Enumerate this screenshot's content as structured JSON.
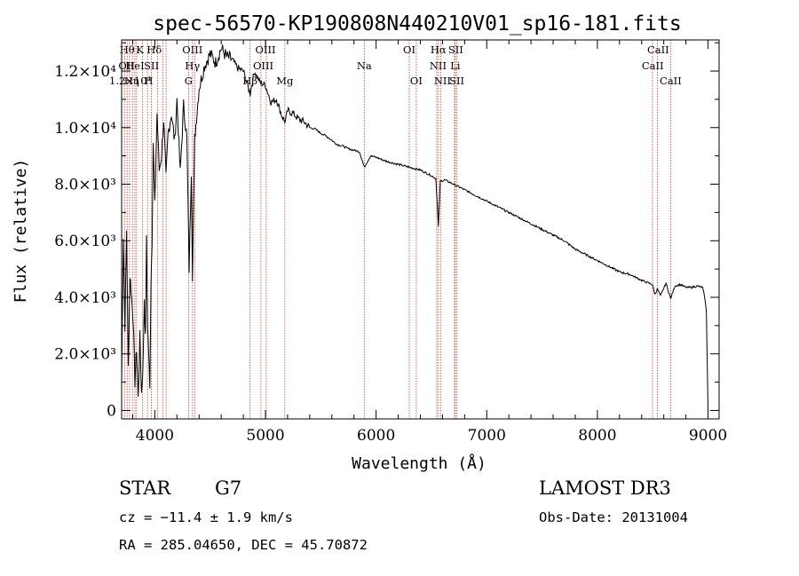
{
  "chart_data": {
    "type": "line",
    "title": "spec-56570-KP190808N440210V01_sp16-181.fits",
    "xlabel": "Wavelength (Å)",
    "ylabel": "Flux (relative)",
    "xlim": [
      3700,
      9100
    ],
    "ylim": [
      -300,
      13100
    ],
    "x_ticks": [
      {
        "value": 4000,
        "label": "4000"
      },
      {
        "value": 5000,
        "label": "5000"
      },
      {
        "value": 6000,
        "label": "6000"
      },
      {
        "value": 7000,
        "label": "7000"
      },
      {
        "value": 8000,
        "label": "8000"
      },
      {
        "value": 9000,
        "label": "9000"
      }
    ],
    "y_ticks": [
      {
        "value": 0,
        "label": "0"
      },
      {
        "value": 2000,
        "label": "2.0×10³"
      },
      {
        "value": 4000,
        "label": "4.0×10³"
      },
      {
        "value": 6000,
        "label": "6.0×10³"
      },
      {
        "value": 8000,
        "label": "8.0×10³"
      },
      {
        "value": 10000,
        "label": "1.0×10⁴"
      },
      {
        "value": 12000,
        "label": "1.2×10⁴"
      }
    ],
    "spectrum": {
      "name": "flux",
      "x": [
        3700,
        3715,
        3730,
        3745,
        3760,
        3775,
        3790,
        3805,
        3820,
        3835,
        3850,
        3865,
        3880,
        3895,
        3905,
        3915,
        3925,
        3935,
        3945,
        3955,
        3965,
        3975,
        3985,
        4000,
        4020,
        4040,
        4060,
        4080,
        4101,
        4120,
        4150,
        4180,
        4200,
        4230,
        4260,
        4290,
        4310,
        4330,
        4340,
        4360,
        4400,
        4450,
        4500,
        4550,
        4600,
        4650,
        4700,
        4750,
        4800,
        4861,
        4900,
        4950,
        5000,
        5050,
        5100,
        5150,
        5180,
        5200,
        5250,
        5300,
        5350,
        5400,
        5450,
        5500,
        5550,
        5600,
        5650,
        5700,
        5750,
        5800,
        5850,
        5893,
        5950,
        6000,
        6100,
        6200,
        6300,
        6400,
        6500,
        6540,
        6563,
        6580,
        6620,
        6700,
        6800,
        6900,
        7000,
        7100,
        7200,
        7300,
        7400,
        7500,
        7600,
        7700,
        7800,
        7900,
        8000,
        8100,
        8200,
        8300,
        8400,
        8498,
        8520,
        8542,
        8570,
        8620,
        8662,
        8700,
        8750,
        8800,
        8850,
        8900,
        8950,
        8970,
        8985,
        9000
      ],
      "y": [
        1000,
        6200,
        3000,
        6400,
        1500,
        4800,
        4000,
        3200,
        1000,
        2200,
        400,
        2600,
        600,
        1800,
        4000,
        2500,
        6000,
        3000,
        2000,
        700,
        4500,
        6000,
        9500,
        7200,
        10500,
        8500,
        9000,
        10300,
        8200,
        9800,
        10500,
        9500,
        11000,
        8400,
        10800,
        9600,
        5000,
        8500,
        4800,
        9600,
        11400,
        12200,
        12600,
        12300,
        12800,
        12500,
        12400,
        12100,
        12000,
        11200,
        12000,
        11600,
        11500,
        10900,
        11000,
        10400,
        10200,
        10600,
        10500,
        10300,
        10200,
        10000,
        9950,
        9800,
        9700,
        9550,
        9400,
        9350,
        9250,
        9200,
        9150,
        8600,
        9000,
        8950,
        8800,
        8700,
        8600,
        8500,
        8300,
        8200,
        6500,
        8100,
        8150,
        8000,
        7800,
        7600,
        7400,
        7200,
        7000,
        6800,
        6600,
        6400,
        6200,
        6000,
        5700,
        5500,
        5300,
        5100,
        4900,
        4800,
        4600,
        4450,
        4100,
        4300,
        4050,
        4500,
        3950,
        4400,
        4450,
        4350,
        4350,
        4400,
        4350,
        4000,
        3500,
        0
      ]
    },
    "line_labels_row1": [
      {
        "x": 3750,
        "label": "Hθ"
      },
      {
        "x": 3865,
        "label": "K"
      },
      {
        "x": 3995,
        "label": "Hδ"
      },
      {
        "x": 4340,
        "label": "OIII"
      },
      {
        "x": 5000,
        "label": "OIII"
      },
      {
        "x": 6300,
        "label": "OI"
      },
      {
        "x": 6563,
        "label": "Hα"
      },
      {
        "x": 6720,
        "label": "SII"
      },
      {
        "x": 8549,
        "label": "CaII"
      }
    ],
    "line_labels_row2": [
      {
        "x": 3745,
        "label": "OII"
      },
      {
        "x": 3820,
        "label": "HeI"
      },
      {
        "x": 3970,
        "label": "SII"
      },
      {
        "x": 4340,
        "label": "Hγ"
      },
      {
        "x": 4980,
        "label": "OIII"
      },
      {
        "x": 5893,
        "label": "Na"
      },
      {
        "x": 6560,
        "label": "NII"
      },
      {
        "x": 6715,
        "label": "Li"
      },
      {
        "x": 8500,
        "label": "CaII"
      }
    ],
    "line_labels_row3": [
      {
        "x": 3790,
        "label": "Hη"
      },
      {
        "x": 3945,
        "label": "H"
      },
      {
        "x": 4305,
        "label": "G"
      },
      {
        "x": 4861,
        "label": "Hβ"
      },
      {
        "x": 5175,
        "label": "Mg"
      },
      {
        "x": 6363,
        "label": "OI"
      },
      {
        "x": 6600,
        "label": "NII"
      },
      {
        "x": 6730,
        "label": "SII"
      },
      {
        "x": 8662,
        "label": "CaII"
      }
    ],
    "row2_overlay_label": {
      "x": 3700,
      "label": "1.2×10⁴"
    },
    "marker_lines_x": [
      3727,
      3750,
      3771,
      3798,
      3820,
      3835,
      3889,
      3934,
      3969,
      4026,
      4072,
      4102,
      4305,
      4341,
      4363,
      4861,
      4959,
      5007,
      5175,
      5893,
      6300,
      6363,
      6548,
      6563,
      6583,
      6708,
      6716,
      6731,
      8498,
      8542,
      8662
    ],
    "marker_color": "#d23a2a",
    "line_color": "#000000"
  },
  "info": {
    "object_type": "STAR",
    "subclass": "G7",
    "redshift": "cz = −11.4 ± 1.9 km/s",
    "coords": "RA = 285.04650, DEC =  45.70872",
    "survey": "LAMOST DR3",
    "obs_date": "Obs-Date: 20131004"
  }
}
